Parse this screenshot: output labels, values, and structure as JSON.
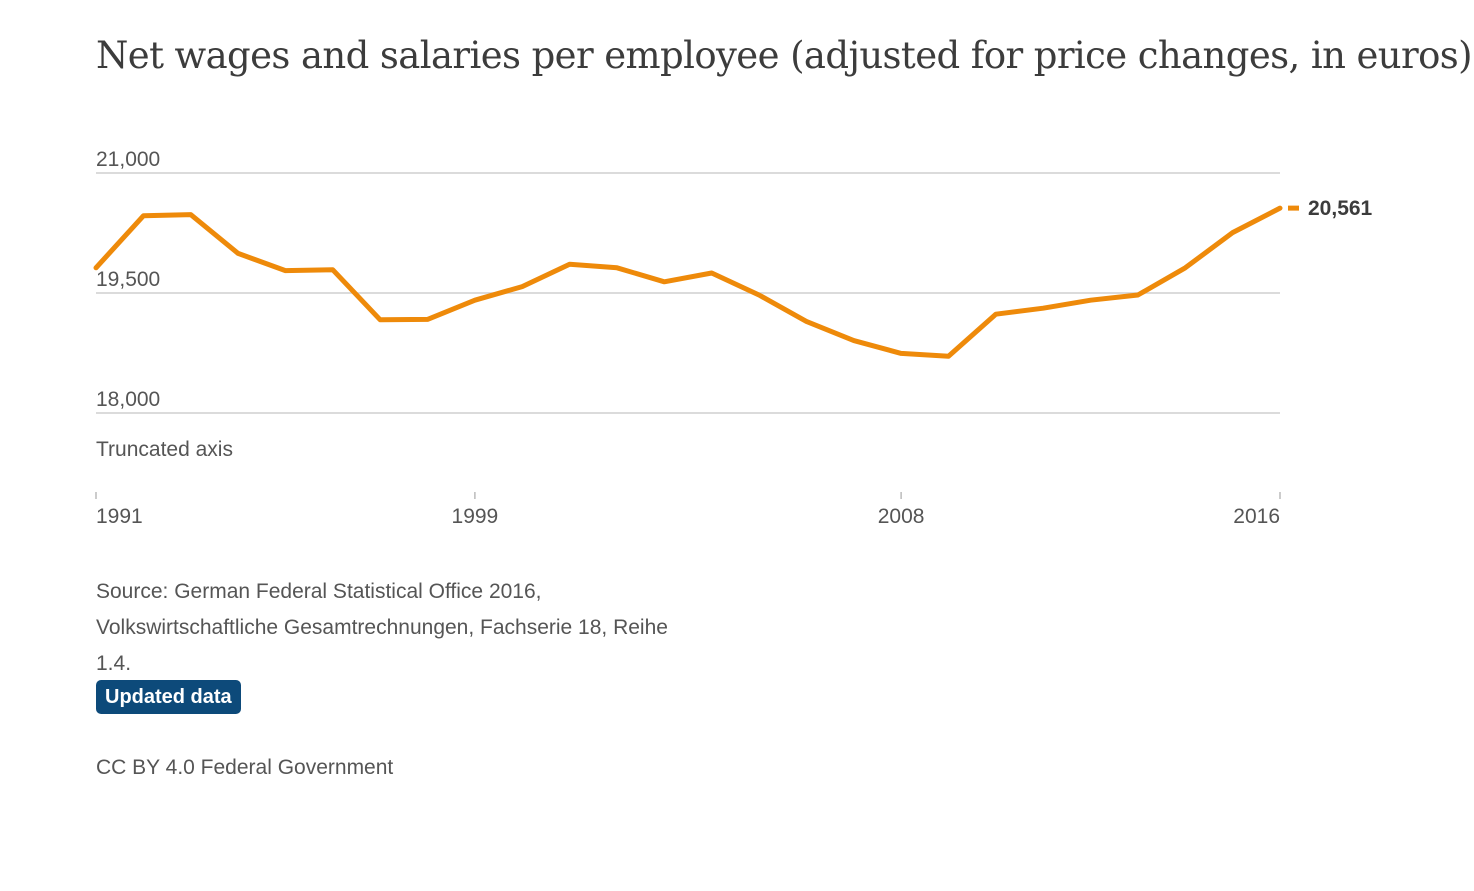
{
  "title": "Net wages and salaries per employee (adjusted for price changes, in euros)",
  "chart_data": {
    "type": "line",
    "title": "Net wages and salaries per employee (adjusted for price changes, in euros)",
    "xlabel": "",
    "ylabel": "",
    "x": [
      1991,
      1992,
      1993,
      1994,
      1995,
      1996,
      1997,
      1998,
      1999,
      2000,
      2001,
      2002,
      2003,
      2004,
      2005,
      2006,
      2007,
      2008,
      2009,
      2010,
      2011,
      2012,
      2013,
      2014,
      2015,
      2016
    ],
    "series": [
      {
        "name": "",
        "values": [
          19815,
          20465,
          20480,
          19995,
          19780,
          19790,
          19165,
          19170,
          19410,
          19580,
          19860,
          19815,
          19640,
          19750,
          19475,
          19145,
          18905,
          18745,
          18710,
          19235,
          19310,
          19410,
          19475,
          19815,
          20255,
          20561
        ]
      }
    ],
    "xticks": [
      "1991",
      "1999",
      "2008",
      "2016"
    ],
    "yticks": [
      "18,000",
      "19,500",
      "21,000"
    ],
    "ylim": [
      18000,
      21000
    ],
    "end_label": "20,561",
    "color": "#ee8a0a",
    "grid": true,
    "note": "Truncated axis"
  },
  "source": "Source: German Federal Statistical Office 2016, Volkswirtschaftliche Gesamtrechnungen, Fachserie 18, Reihe 1.4.",
  "badge": "Updated data",
  "license": "CC BY 4.0 Federal Government"
}
